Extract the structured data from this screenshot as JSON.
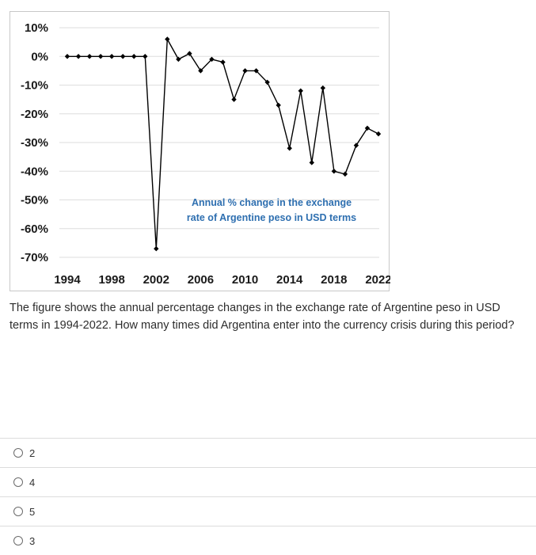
{
  "chart_data": {
    "type": "line",
    "x_ticks": [
      "1994",
      "1998",
      "2002",
      "2006",
      "2010",
      "2014",
      "2018",
      "2022"
    ],
    "y_ticks": [
      "10%",
      "0%",
      "-10%",
      "-20%",
      "-30%",
      "-40%",
      "-50%",
      "-60%",
      "-70%"
    ],
    "ylim": [
      -70,
      10
    ],
    "xlim": [
      1994,
      2022
    ],
    "grid": true,
    "annotation_lines": [
      "Annual % change in the exchange",
      "rate of Argentine peso in USD terms"
    ],
    "series": [
      {
        "color": "#000000",
        "x": [
          1994,
          1995,
          1996,
          1997,
          1998,
          1999,
          2000,
          2001,
          2002,
          2003,
          2004,
          2005,
          2006,
          2007,
          2008,
          2009,
          2010,
          2011,
          2012,
          2013,
          2014,
          2015,
          2016,
          2017,
          2018,
          2019,
          2020,
          2021,
          2022
        ],
        "values": [
          0,
          0,
          0,
          0,
          0,
          0,
          0,
          0,
          -67,
          6,
          -1,
          1,
          -5,
          -1,
          -2,
          -15,
          -5,
          -5,
          -9,
          -17,
          -32,
          -12,
          -37,
          -11,
          -40,
          -41,
          -31,
          -25,
          -27
        ]
      }
    ]
  },
  "question": {
    "text": "The figure shows the annual percentage changes in the exchange rate of Argentine peso in USD terms in 1994-2022. How many times did Argentina enter into the currency crisis during this period?"
  },
  "options": [
    {
      "label": "2"
    },
    {
      "label": "4"
    },
    {
      "label": "5"
    },
    {
      "label": "3"
    }
  ]
}
